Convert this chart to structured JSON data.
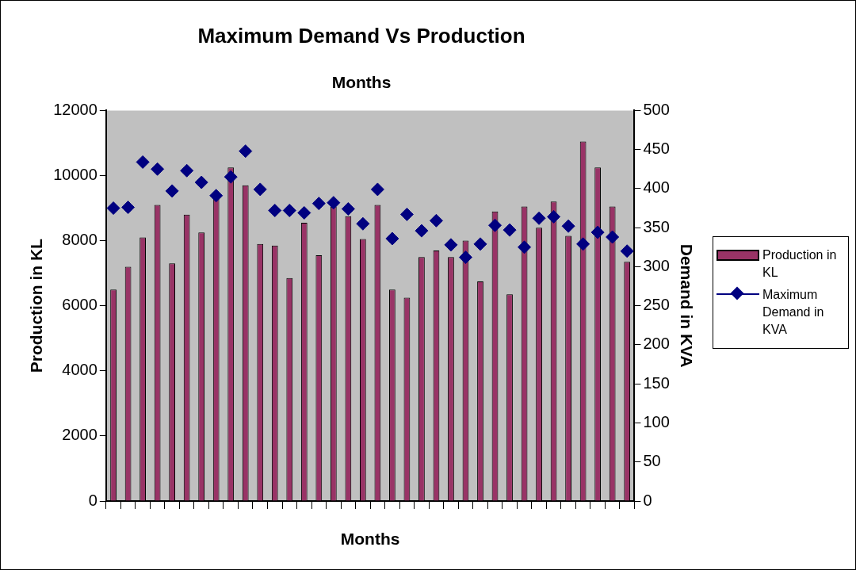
{
  "chart_data": {
    "type": "bar",
    "title": "Maximum Demand Vs Production",
    "subtitle": "Months",
    "xlabel": "Months",
    "ylabel": "Production in KL",
    "y2label": "Demand in KVA",
    "categories": [
      null,
      null,
      null,
      null,
      null,
      null,
      null,
      null,
      null,
      null,
      null,
      null,
      null,
      null,
      null,
      null,
      null,
      null,
      null,
      null,
      null,
      null,
      null,
      null,
      null,
      null,
      null,
      null,
      null,
      null,
      null,
      null,
      null,
      null,
      null,
      null
    ],
    "series": [
      {
        "name": "Production in KL",
        "color": "#993366",
        "values": [
          6500,
          7200,
          8100,
          9100,
          7300,
          8800,
          8250,
          9300,
          10250,
          9700,
          7900,
          7850,
          6850,
          8550,
          7550,
          9050,
          8750,
          8050,
          9100,
          6500,
          6250,
          7500,
          7700,
          7500,
          8000,
          6750,
          8900,
          6350,
          9050,
          8400,
          9200,
          8150,
          11050,
          10250,
          9050,
          7350
        ]
      },
      {
        "name": "Maximum Demand in KVA",
        "type": "scatter",
        "axis": "y2",
        "color": "#000080",
        "marker": "diamond",
        "values": [
          375,
          376,
          434,
          425,
          397,
          423,
          408,
          391,
          415,
          448,
          399,
          372,
          372,
          369,
          381,
          382,
          374,
          355,
          399,
          336,
          367,
          346,
          359,
          328,
          312,
          329,
          353,
          347,
          325,
          362,
          364,
          352,
          329,
          344,
          338,
          320
        ]
      }
    ],
    "ylim": [
      0,
      12000
    ],
    "yticks": [
      0,
      2000,
      4000,
      6000,
      8000,
      10000,
      12000
    ],
    "y2lim": [
      0,
      500
    ],
    "y2ticks": [
      0,
      50,
      100,
      150,
      200,
      250,
      300,
      350,
      400,
      450,
      500
    ],
    "grid": false,
    "legend": "right"
  }
}
